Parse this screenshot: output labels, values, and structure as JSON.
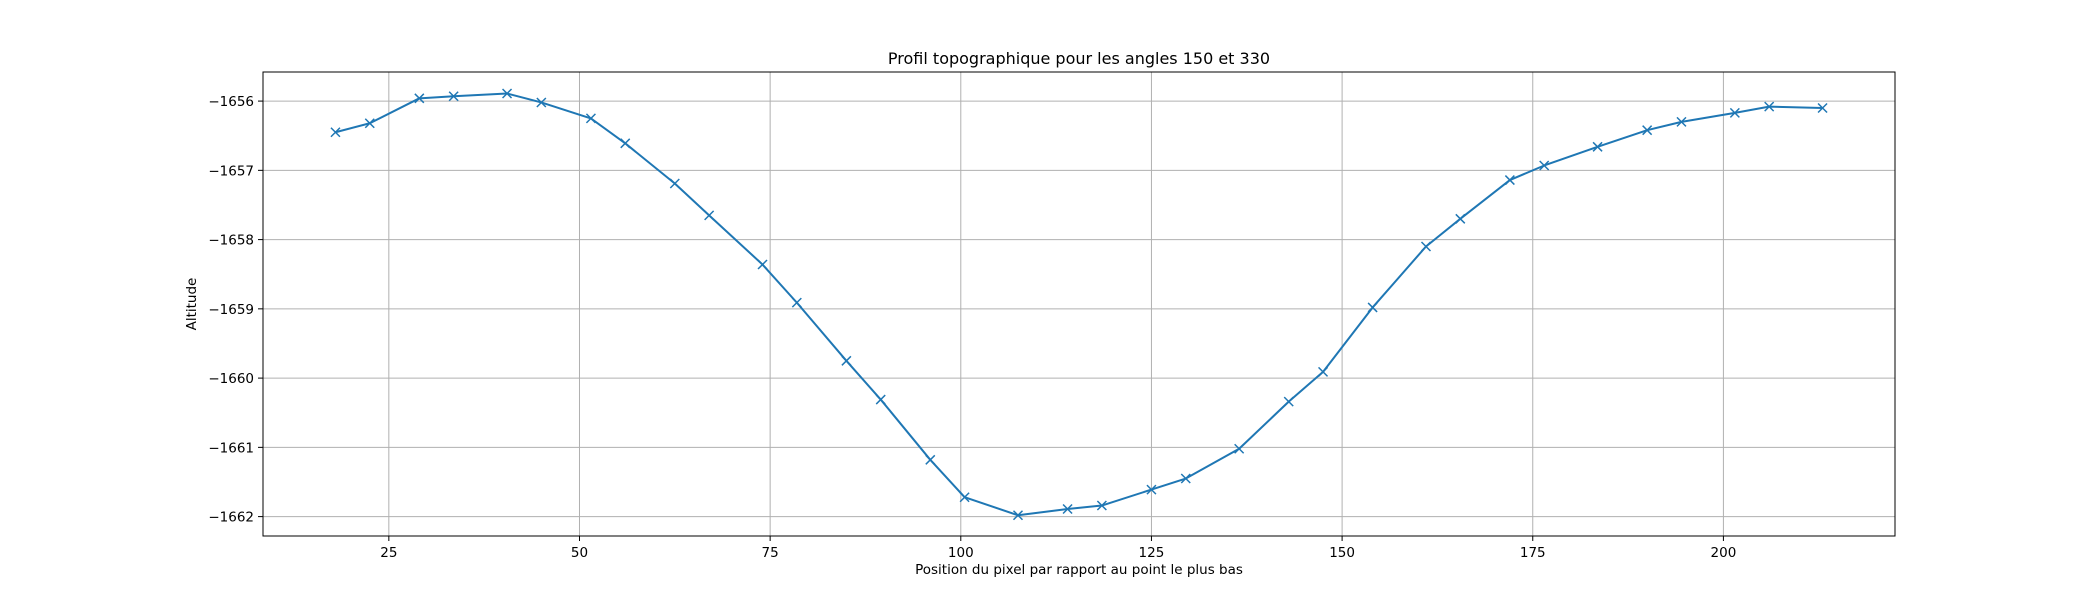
{
  "chart_data": {
    "type": "line",
    "title": "Profil topographique pour les angles 150 et 330",
    "xlabel": "Position du pixel par rapport au point le plus bas",
    "ylabel": "Altitude",
    "xlim": [
      8.5,
      222.5
    ],
    "ylim": [
      -1662.28,
      -1655.58
    ],
    "xticks": [
      25,
      50,
      75,
      100,
      125,
      150,
      175,
      200
    ],
    "xtick_labels": [
      "25",
      "50",
      "75",
      "100",
      "125",
      "150",
      "175",
      "200"
    ],
    "yticks": [
      -1656,
      -1657,
      -1658,
      -1659,
      -1660,
      -1661,
      -1662
    ],
    "ytick_labels": [
      "−1656",
      "−1657",
      "−1658",
      "−1659",
      "−1660",
      "−1661",
      "−1662"
    ],
    "grid": true,
    "series": [
      {
        "color": "#1f77b4",
        "marker": "x",
        "points": [
          [
            18,
            -1656.45
          ],
          [
            22.5,
            -1656.32
          ],
          [
            29,
            -1655.96
          ],
          [
            33.5,
            -1655.93
          ],
          [
            40.5,
            -1655.89
          ],
          [
            45,
            -1656.02
          ],
          [
            51.5,
            -1656.25
          ],
          [
            56,
            -1656.61
          ],
          [
            62.5,
            -1657.19
          ],
          [
            67,
            -1657.65
          ],
          [
            74,
            -1658.36
          ],
          [
            78.5,
            -1658.91
          ],
          [
            85,
            -1659.75
          ],
          [
            89.5,
            -1660.31
          ],
          [
            96,
            -1661.18
          ],
          [
            100.5,
            -1661.72
          ],
          [
            107.5,
            -1661.98
          ],
          [
            114,
            -1661.89
          ],
          [
            118.5,
            -1661.84
          ],
          [
            125,
            -1661.61
          ],
          [
            129.5,
            -1661.45
          ],
          [
            136.5,
            -1661.02
          ],
          [
            143,
            -1660.34
          ],
          [
            147.5,
            -1659.91
          ],
          [
            154,
            -1658.98
          ],
          [
            161,
            -1658.1
          ],
          [
            165.5,
            -1657.7
          ],
          [
            172,
            -1657.14
          ],
          [
            176.5,
            -1656.93
          ],
          [
            183.5,
            -1656.66
          ],
          [
            190,
            -1656.42
          ],
          [
            194.5,
            -1656.3
          ],
          [
            201.5,
            -1656.17
          ],
          [
            206,
            -1656.08
          ],
          [
            213,
            -1656.1
          ]
        ]
      }
    ]
  }
}
